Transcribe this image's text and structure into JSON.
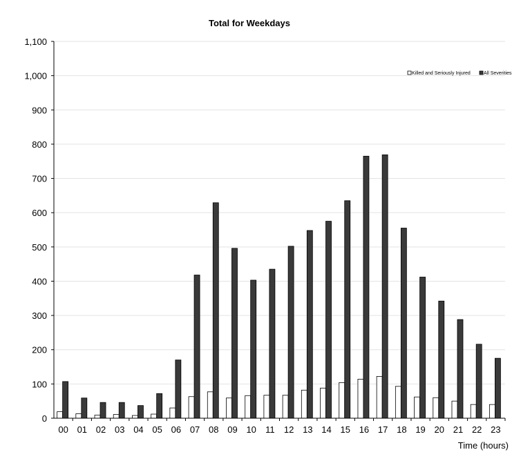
{
  "chart_data": {
    "type": "bar",
    "title": "Total for Weekdays",
    "xlabel": "Time (hours)",
    "ylabel": "",
    "ylim": [
      0,
      1100
    ],
    "yticks": [
      0,
      100,
      200,
      300,
      400,
      500,
      600,
      700,
      800,
      900,
      1000,
      1100
    ],
    "ytick_labels": [
      "0",
      "100",
      "200",
      "300",
      "400",
      "500",
      "600",
      "700",
      "800",
      "900",
      "1,000",
      "1,100"
    ],
    "categories": [
      "00",
      "01",
      "02",
      "03",
      "04",
      "05",
      "06",
      "07",
      "08",
      "09",
      "10",
      "11",
      "12",
      "13",
      "14",
      "15",
      "16",
      "17",
      "18",
      "19",
      "20",
      "21",
      "22",
      "23"
    ],
    "series": [
      {
        "name": "Killed and Seriously Injured",
        "color": "#ffffff",
        "values": [
          19,
          13,
          9,
          11,
          8,
          12,
          30,
          63,
          77,
          59,
          66,
          67,
          67,
          82,
          88,
          104,
          114,
          122,
          93,
          62,
          60,
          50,
          40,
          40
        ]
      },
      {
        "name": "All Severities",
        "color": "#3a3a3a",
        "values": [
          107,
          59,
          46,
          46,
          37,
          72,
          170,
          418,
          629,
          496,
          403,
          435,
          502,
          548,
          575,
          635,
          765,
          769,
          555,
          412,
          342,
          288,
          216,
          175
        ]
      }
    ],
    "grid": true,
    "legend": "top-right"
  }
}
